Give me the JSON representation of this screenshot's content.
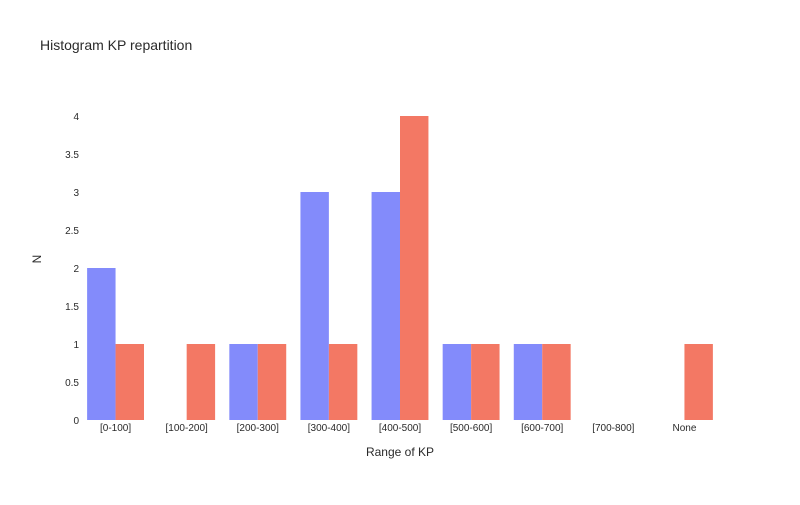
{
  "chart_data": {
    "type": "bar",
    "title": "Histogram KP repartition",
    "xlabel": "Range of KP",
    "ylabel": "N",
    "categories": [
      "[0-100]",
      "[100-200]",
      "[200-300]",
      "[300-400]",
      "[400-500]",
      "[500-600]",
      "[600-700]",
      "[700-800]",
      "None"
    ],
    "series": [
      {
        "color": "#838bfb",
        "values": [
          2,
          0,
          1,
          3,
          3,
          1,
          1,
          0,
          0
        ]
      },
      {
        "color": "#f37864",
        "values": [
          1,
          1,
          1,
          1,
          4,
          1,
          1,
          0,
          1
        ]
      }
    ],
    "ylim": [
      0,
      4
    ],
    "yticks": [
      "0",
      "0.5",
      "1",
      "1.5",
      "2",
      "2.5",
      "3",
      "3.5",
      "4"
    ],
    "grid": false,
    "legend": "none"
  }
}
